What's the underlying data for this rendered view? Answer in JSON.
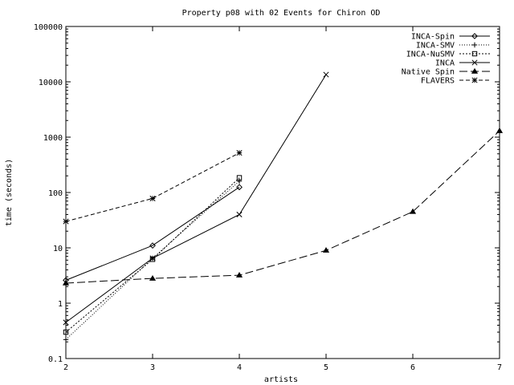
{
  "chart_data": {
    "type": "line",
    "title": "Property p08 with 02 Events for Chiron OD",
    "xlabel": "artists",
    "ylabel": "time (seconds)",
    "xlim": [
      2,
      7
    ],
    "ylim": [
      0.1,
      100000
    ],
    "yscale": "log",
    "grid": false,
    "legend_position": "top-right",
    "x_ticks": [
      2,
      3,
      4,
      5,
      6,
      7
    ],
    "x_tick_labels": [
      "2",
      "3",
      "4",
      "5",
      "6",
      "7"
    ],
    "y_ticks": [
      0.1,
      1,
      10,
      100,
      1000,
      10000,
      100000
    ],
    "y_tick_labels": [
      "0.1",
      "1",
      "10",
      "100",
      "1000",
      "10000",
      "100000"
    ],
    "series": [
      {
        "name": "INCA-Spin",
        "marker": "diamond",
        "dash": "",
        "x": [
          2,
          3,
          4
        ],
        "y": [
          2.6,
          11,
          125
        ]
      },
      {
        "name": "INCA-SMV",
        "marker": "plus",
        "dash": "1,2",
        "x": [
          2,
          3,
          4
        ],
        "y": [
          0.22,
          6.5,
          160
        ]
      },
      {
        "name": "INCA-NuSMV",
        "marker": "square",
        "dash": "2,2",
        "x": [
          2,
          3,
          4
        ],
        "y": [
          0.3,
          6.2,
          185
        ]
      },
      {
        "name": "INCA",
        "marker": "cross",
        "dash": "",
        "x": [
          2,
          3,
          4,
          5
        ],
        "y": [
          0.45,
          6.5,
          40,
          13500
        ]
      },
      {
        "name": "Native Spin",
        "marker": "triangle",
        "dash": "10,4",
        "x": [
          2,
          3,
          4,
          5,
          6,
          7
        ],
        "y": [
          2.3,
          2.8,
          3.2,
          9,
          45,
          1300
        ]
      },
      {
        "name": "FLAVERS",
        "marker": "star",
        "dash": "5,3",
        "x": [
          2,
          3,
          4
        ],
        "y": [
          30,
          78,
          520
        ]
      }
    ]
  }
}
